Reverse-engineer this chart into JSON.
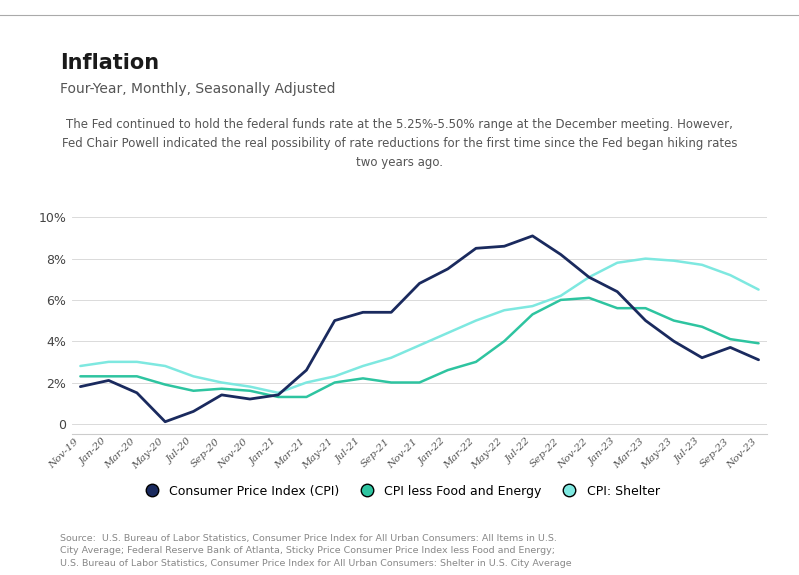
{
  "title": "Inflation",
  "subtitle": "Four-Year, Monthly, Seasonally Adjusted",
  "annotation": "The Fed continued to hold the federal funds rate at the 5.25%-5.50% range at the December meeting. However,\nFed Chair Powell indicated the real possibility of rate reductions for the first time since the Fed began hiking rates\ntwo years ago.",
  "source": "Source:  U.S. Bureau of Labor Statistics, Consumer Price Index for All Urban Consumers: All Items in U.S.\nCity Average; Federal Reserve Bank of Atlanta, Sticky Price Consumer Price Index less Food and Energy;\nU.S. Bureau of Labor Statistics, Consumer Price Index for All Urban Consumers: Shelter in U.S. City Average",
  "x_labels": [
    "Nov-19",
    "Jan-20",
    "Mar-20",
    "May-20",
    "Jul-20",
    "Sep-20",
    "Nov-20",
    "Jan-21",
    "Mar-21",
    "May-21",
    "Jul-21",
    "Sep-21",
    "Nov-21",
    "Jan-22",
    "Mar-22",
    "May-22",
    "Jul-22",
    "Sep-22",
    "Nov-22",
    "Jan-23",
    "Mar-23",
    "May-23",
    "Jul-23",
    "Sep-23",
    "Nov-23"
  ],
  "cpi_y": [
    1.8,
    2.1,
    1.5,
    0.1,
    0.6,
    1.4,
    1.2,
    1.4,
    2.6,
    5.0,
    5.4,
    5.4,
    6.8,
    7.5,
    8.5,
    8.6,
    9.1,
    8.2,
    7.1,
    6.4,
    5.0,
    4.0,
    3.2,
    3.7,
    3.1
  ],
  "cpi_less_y": [
    2.3,
    2.3,
    2.3,
    1.9,
    1.6,
    1.7,
    1.6,
    1.3,
    1.3,
    2.0,
    2.2,
    2.0,
    2.0,
    2.6,
    3.0,
    4.0,
    5.3,
    6.0,
    6.1,
    5.6,
    5.6,
    5.0,
    4.7,
    4.1,
    3.9
  ],
  "shelter_y": [
    2.8,
    3.0,
    3.0,
    2.8,
    2.3,
    2.0,
    1.8,
    1.5,
    2.0,
    2.3,
    2.8,
    3.2,
    3.8,
    4.4,
    5.0,
    5.5,
    5.7,
    6.2,
    7.1,
    7.8,
    8.0,
    7.9,
    7.7,
    7.2,
    6.5
  ],
  "ylim": [
    -0.5,
    10.5
  ],
  "yticks": [
    0,
    2,
    4,
    6,
    8,
    10
  ],
  "cpi_color": "#1a2a5e",
  "cpi_less_color": "#2ec4a0",
  "shelter_color": "#7ee8e0",
  "bg_color": "#ffffff",
  "border_color": "#cccccc",
  "legend_labels": [
    "Consumer Price Index (CPI)",
    "CPI less Food and Energy",
    "CPI: Shelter"
  ],
  "title_fontsize": 15,
  "subtitle_fontsize": 10,
  "annotation_fontsize": 8.5,
  "source_fontsize": 6.8,
  "ytick_fontsize": 9,
  "xtick_fontsize": 7.5
}
